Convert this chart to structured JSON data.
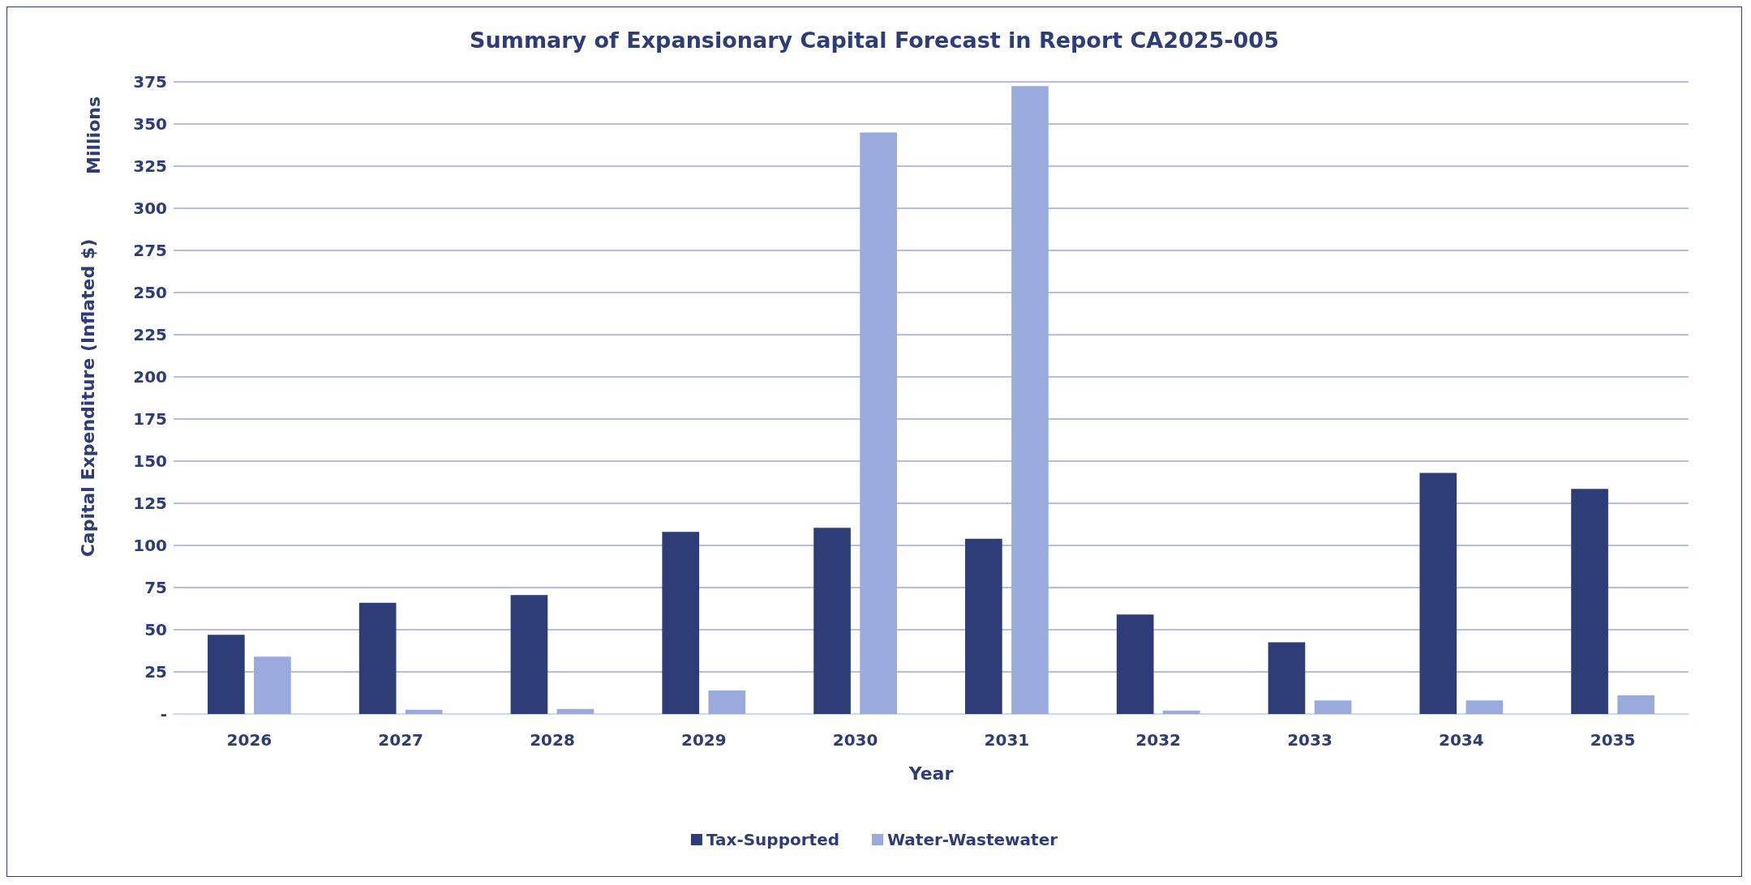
{
  "chart_data": {
    "type": "bar",
    "title": "Summary of Expansionary Capital Forecast in Report CA2025-005",
    "xlabel": "Year",
    "ylabel": "Capital Expenditure (Inflated $)",
    "annotations": [
      "Millions"
    ],
    "categories": [
      "2026",
      "2027",
      "2028",
      "2029",
      "2030",
      "2031",
      "2032",
      "2033",
      "2034",
      "2035"
    ],
    "series": [
      {
        "name": "Tax-Supported",
        "color": "#2e3c78",
        "values": [
          47,
          66,
          70.5,
          108,
          110.5,
          104,
          59,
          42.5,
          143,
          133.5
        ]
      },
      {
        "name": "Water-Wastewater",
        "color": "#9baadc",
        "values": [
          34,
          2.5,
          3,
          14,
          345,
          372.5,
          2,
          8,
          8,
          11
        ]
      }
    ],
    "ylim": [
      0,
      375
    ],
    "yticks": [
      {
        "value": 0,
        "label": "-"
      },
      25,
      50,
      75,
      100,
      125,
      150,
      175,
      200,
      225,
      250,
      275,
      300,
      325,
      350,
      375
    ],
    "grid": "y",
    "legend": "bottom"
  }
}
